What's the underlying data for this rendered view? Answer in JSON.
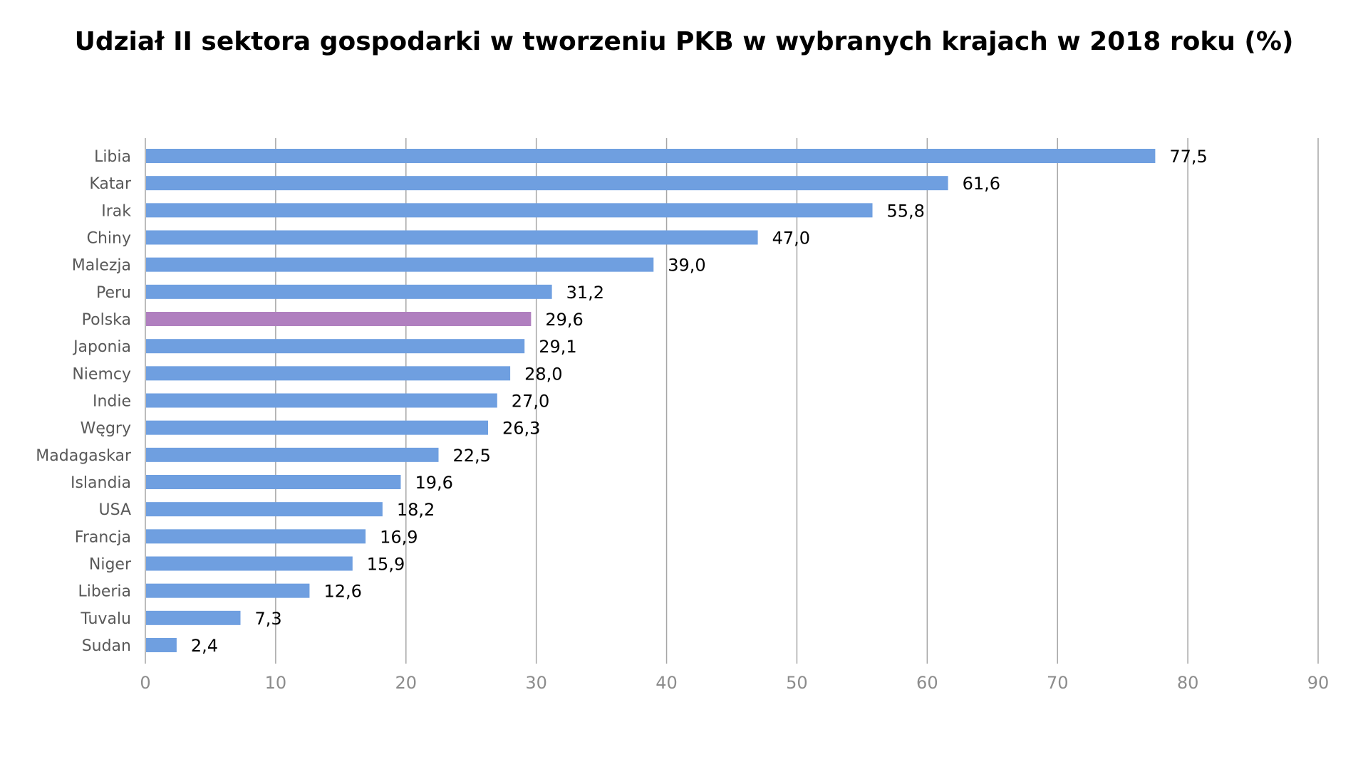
{
  "chart_data": {
    "type": "bar",
    "orientation": "horizontal",
    "title": "Udział II sektora gospodarki w tworzeniu PKB w wybranych krajach w 2018 roku (%)",
    "xlabel": "",
    "ylabel": "",
    "xlim": [
      0,
      90
    ],
    "xticks": [
      "0",
      "10",
      "20",
      "30",
      "40",
      "50",
      "60",
      "70",
      "80",
      "90"
    ],
    "grid": true,
    "legend": "none",
    "categories": [
      "Libia",
      "Katar",
      "Irak",
      "Chiny",
      "Malezja",
      "Peru",
      "Polska",
      "Japonia",
      "Niemcy",
      "Indie",
      "Węgry",
      "Madagaskar",
      "Islandia",
      "USA",
      "Francja",
      "Niger",
      "Liberia",
      "Tuvalu",
      "Sudan"
    ],
    "values": [
      77.5,
      61.6,
      55.8,
      47.0,
      39.0,
      31.2,
      29.6,
      29.1,
      28.0,
      27.0,
      26.3,
      22.5,
      19.6,
      18.2,
      16.9,
      15.9,
      12.6,
      7.3,
      2.4
    ],
    "value_labels": [
      "77,5",
      "61,6",
      "55,8",
      "47,0",
      "39,0",
      "31,2",
      "29,6",
      "29,1",
      "28,0",
      "27,0",
      "26,3",
      "22,5",
      "19,6",
      "18,2",
      "16,9",
      "15,9",
      "12,6",
      "7,3",
      "2,4"
    ],
    "highlight": "Polska",
    "colors": {
      "bar": "#6f9fe0",
      "highlight": "#b07fbf",
      "grid": "#a6a6a6",
      "category_label": "#595959",
      "tick_label": "#8c8c8c",
      "value_label": "#000000"
    }
  }
}
